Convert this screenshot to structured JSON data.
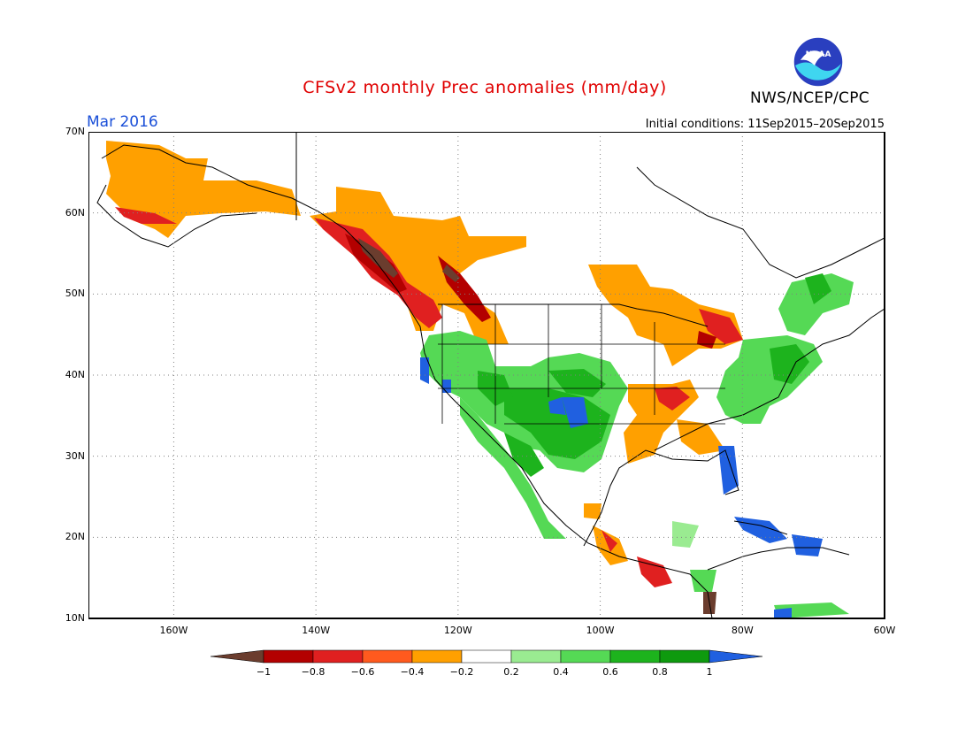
{
  "header": {
    "title": "CFSv2 monthly Prec anomalies (mm/day)",
    "month": "Mar 2016",
    "initial_conditions": "Initial conditions: 11Sep2015–20Sep2015",
    "agency": "NWS/NCEP/CPC",
    "logo_text": "NOAA"
  },
  "axes": {
    "lat_labels": [
      "70N",
      "60N",
      "50N",
      "40N",
      "30N",
      "20N",
      "10N"
    ],
    "lon_labels": [
      "160W",
      "140W",
      "120W",
      "100W",
      "80W",
      "60W"
    ]
  },
  "legend": {
    "tick_labels": [
      "−1",
      "−0.8",
      "−0.6",
      "−0.4",
      "−0.2",
      "0.2",
      "0.4",
      "0.6",
      "0.8",
      "1"
    ],
    "colors": [
      "#6b3d2e",
      "#b30000",
      "#e02020",
      "#ff5a1e",
      "#ffa000",
      "#ffffff",
      "#9aeb91",
      "#55d955",
      "#1db31d",
      "#0e9a0e",
      "#2060e0"
    ]
  },
  "map": {
    "projection": "lat-lon",
    "lon_range": [
      -172,
      -60
    ],
    "lat_range": [
      10,
      70
    ],
    "grid": true
  }
}
